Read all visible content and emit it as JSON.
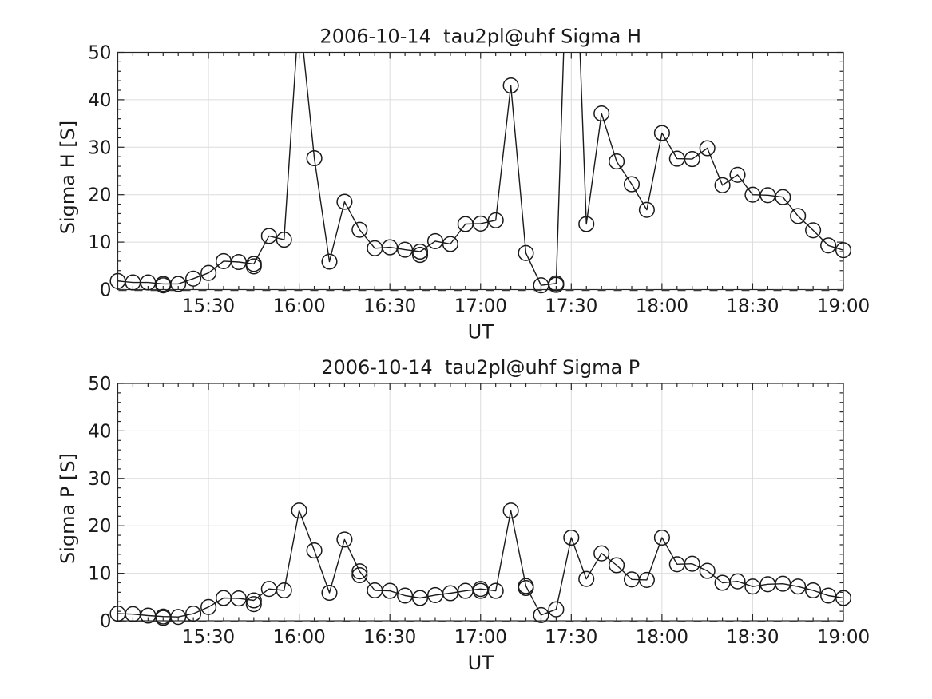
{
  "figure": {
    "background": "#ffffff",
    "axes_color": "#262626",
    "text_color": "#1a1a1a",
    "grid_color": "#dcdcdc",
    "line_color": "#1a1a1a",
    "zero_line_color": "#3c3c3c"
  },
  "chart_data": [
    {
      "type": "line",
      "title": "2006-10-14  tau2pl@uhf Sigma H",
      "xlabel": "UT",
      "ylabel": "Sigma H [S]",
      "ylim": [
        0,
        50
      ],
      "xlim_hhmm": [
        "15:00",
        "19:00"
      ],
      "x_major_tick_labels": [
        "15:30",
        "16:00",
        "16:30",
        "17:00",
        "17:30",
        "18:00",
        "18:30",
        "19:00"
      ],
      "x_minor_tick_minutes": 5,
      "y_major_ticks": [
        0,
        10,
        20,
        30,
        40,
        50
      ],
      "y_minor_tick_step": 2,
      "grid": "major-only",
      "legend": "none",
      "marker": "open-circle",
      "zero_reference_line": "dashed",
      "x_start": "15:00",
      "x_step_minutes": 5,
      "values": [
        1.8,
        1.5,
        1.5,
        1.2,
        1.2,
        2.3,
        3.5,
        6.0,
        5.8,
        5.4,
        11.3,
        10.5,
        59,
        27.7,
        5.9,
        18.5,
        12.6,
        8.7,
        8.9,
        8.4,
        8.0,
        10.2,
        9.6,
        13.8,
        13.9,
        14.6,
        43.0,
        7.7,
        0.9,
        1.3,
        100,
        13.8,
        37.1,
        27.0,
        22.2,
        16.8,
        33.0,
        27.6,
        27.5,
        29.8,
        22.0,
        24.2,
        20.0,
        19.9,
        19.5,
        15.5,
        12.5,
        9.3,
        8.3
      ],
      "peaks_clipped_above_ymax_at": [
        "16:00",
        "17:30"
      ],
      "extra_markers": [
        {
          "x": "15:15",
          "y": 0.9
        },
        {
          "x": "15:45",
          "y": 4.9
        },
        {
          "x": "16:40",
          "y": 7.3
        },
        {
          "x": "17:25",
          "y": 1.0
        }
      ]
    },
    {
      "type": "line",
      "title": "2006-10-14  tau2pl@uhf Sigma P",
      "xlabel": "UT",
      "ylabel": "Sigma P [S]",
      "ylim": [
        0,
        50
      ],
      "xlim_hhmm": [
        "15:00",
        "19:00"
      ],
      "x_major_tick_labels": [
        "15:30",
        "16:00",
        "16:30",
        "17:00",
        "17:30",
        "18:00",
        "18:30",
        "19:00"
      ],
      "x_minor_tick_minutes": 5,
      "y_major_ticks": [
        0,
        10,
        20,
        30,
        40,
        50
      ],
      "y_minor_tick_step": 2,
      "grid": "major-only",
      "legend": "none",
      "marker": "open-circle",
      "zero_reference_line": "dashed",
      "x_start": "15:00",
      "x_step_minutes": 5,
      "values": [
        1.5,
        1.4,
        1.1,
        0.9,
        0.8,
        1.5,
        2.9,
        4.8,
        4.7,
        4.3,
        6.7,
        6.4,
        23.2,
        14.8,
        5.9,
        17.1,
        10.4,
        6.4,
        6.3,
        5.3,
        4.8,
        5.4,
        5.8,
        6.3,
        6.7,
        6.3,
        23.2,
        7.3,
        1.2,
        2.4,
        17.5,
        8.8,
        14.2,
        11.7,
        8.7,
        8.6,
        17.5,
        11.9,
        12.0,
        10.5,
        8.0,
        8.3,
        7.2,
        7.7,
        7.8,
        7.2,
        6.4,
        5.3,
        4.8
      ],
      "peaks_clipped_above_ymax_at": [],
      "extra_markers": [
        {
          "x": "15:15",
          "y": 0.6
        },
        {
          "x": "15:45",
          "y": 3.5
        },
        {
          "x": "16:20",
          "y": 9.6
        },
        {
          "x": "17:00",
          "y": 6.3
        },
        {
          "x": "17:15",
          "y": 6.9
        }
      ]
    }
  ]
}
